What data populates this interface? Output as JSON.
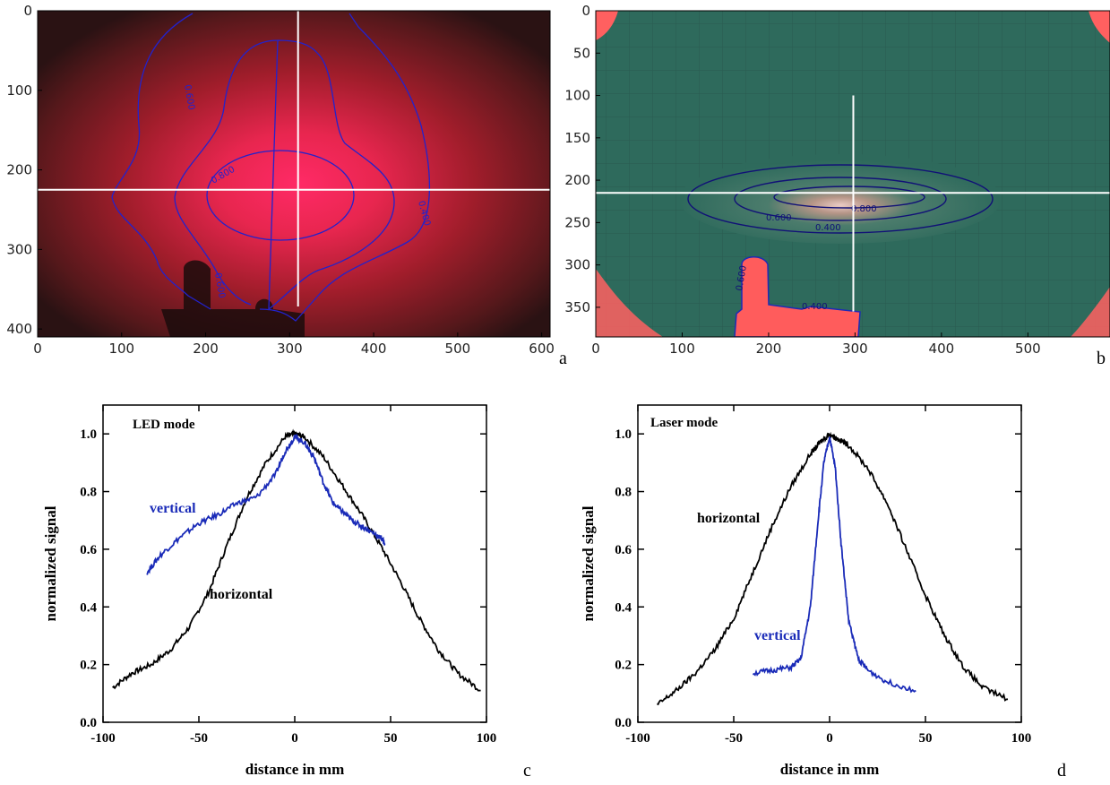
{
  "panels": {
    "a": {
      "letter": "a",
      "type": "heatmap",
      "x_ticks": [
        "0",
        "100",
        "200",
        "300",
        "400",
        "500",
        "600"
      ],
      "y_ticks": [
        "0",
        "100",
        "200",
        "300",
        "400"
      ],
      "xlim": [
        0,
        610
      ],
      "ylim": [
        410,
        0
      ],
      "crosshair": {
        "x": 310,
        "y": 225
      },
      "contour_labels": [
        "0.800",
        "0.600",
        "0.400",
        "0.600"
      ],
      "colors": {
        "base": "#3a1517",
        "peak": "#ff2a66",
        "contour": "#2222cc",
        "crosshair": "#ffffff"
      }
    },
    "b": {
      "letter": "b",
      "type": "heatmap",
      "x_ticks": [
        "0",
        "100",
        "200",
        "300",
        "400",
        "500"
      ],
      "y_ticks": [
        "0",
        "50",
        "100",
        "150",
        "200",
        "250",
        "300",
        "350"
      ],
      "xlim": [
        0,
        595
      ],
      "ylim": [
        385,
        0
      ],
      "crosshair": {
        "x": 298,
        "y": 215
      },
      "contour_labels": [
        "0.800",
        "0.600",
        "0.400",
        "0.400",
        "0.600"
      ],
      "colors": {
        "base": "#2e6a5c",
        "peak": "#ffd6d0",
        "hot": "#ff6060",
        "contour": "#111177",
        "crosshair": "#ffffff"
      }
    },
    "c": {
      "letter": "c",
      "mode_label": "LED mode",
      "x_ticks": [
        "-100",
        "-50",
        "0",
        "50",
        "100"
      ],
      "y_ticks": [
        "0.0",
        "0.2",
        "0.4",
        "0.6",
        "0.8",
        "1.0"
      ],
      "xlabel": "distance in mm",
      "ylabel": "normalized signal",
      "curve_labels": {
        "vertical": "vertical",
        "horizontal": "horizontal"
      }
    },
    "d": {
      "letter": "d",
      "mode_label": "Laser mode",
      "x_ticks": [
        "-100",
        "-50",
        "0",
        "50",
        "100"
      ],
      "y_ticks": [
        "0.0",
        "0.2",
        "0.4",
        "0.6",
        "0.8",
        "1.0"
      ],
      "xlabel": "distance in mm",
      "ylabel": "normalized signal",
      "curve_labels": {
        "vertical": "vertical",
        "horizontal": "horizontal"
      }
    }
  },
  "chart_data": [
    {
      "panel": "c",
      "type": "line",
      "xlim": [
        -100,
        100
      ],
      "ylim": [
        0,
        1.1
      ],
      "series": [
        {
          "name": "horizontal",
          "color": "#000000",
          "x": [
            -95,
            -85,
            -75,
            -65,
            -55,
            -45,
            -35,
            -25,
            -15,
            -5,
            0,
            5,
            15,
            25,
            35,
            45,
            55,
            65,
            75,
            85,
            97
          ],
          "y": [
            0.12,
            0.17,
            0.2,
            0.25,
            0.33,
            0.45,
            0.62,
            0.78,
            0.9,
            0.99,
            1.0,
            0.99,
            0.92,
            0.82,
            0.72,
            0.61,
            0.49,
            0.36,
            0.25,
            0.17,
            0.11
          ]
        },
        {
          "name": "vertical",
          "color": "#1a2bb8",
          "x": [
            -77,
            -70,
            -60,
            -50,
            -40,
            -30,
            -20,
            -10,
            -5,
            0,
            5,
            10,
            15,
            20,
            25,
            30,
            35,
            40,
            45,
            47
          ],
          "y": [
            0.52,
            0.58,
            0.64,
            0.69,
            0.72,
            0.76,
            0.78,
            0.86,
            0.94,
            0.99,
            0.97,
            0.92,
            0.83,
            0.76,
            0.73,
            0.7,
            0.68,
            0.66,
            0.64,
            0.62
          ]
        }
      ]
    },
    {
      "panel": "d",
      "type": "line",
      "xlim": [
        -100,
        100
      ],
      "ylim": [
        0,
        1.1
      ],
      "series": [
        {
          "name": "horizontal",
          "color": "#000000",
          "x": [
            -90,
            -80,
            -70,
            -60,
            -50,
            -40,
            -30,
            -20,
            -10,
            -5,
            0,
            5,
            10,
            20,
            30,
            40,
            50,
            60,
            70,
            80,
            93
          ],
          "y": [
            0.06,
            0.11,
            0.17,
            0.25,
            0.36,
            0.52,
            0.68,
            0.82,
            0.93,
            0.97,
            1.0,
            0.98,
            0.96,
            0.88,
            0.76,
            0.6,
            0.44,
            0.3,
            0.19,
            0.12,
            0.08
          ]
        },
        {
          "name": "vertical",
          "color": "#1a2bb8",
          "x": [
            -40,
            -30,
            -20,
            -15,
            -10,
            -6,
            -3,
            0,
            3,
            6,
            10,
            15,
            20,
            30,
            45
          ],
          "y": [
            0.17,
            0.18,
            0.19,
            0.22,
            0.4,
            0.7,
            0.9,
            0.99,
            0.88,
            0.62,
            0.35,
            0.22,
            0.18,
            0.14,
            0.11
          ]
        }
      ]
    }
  ]
}
